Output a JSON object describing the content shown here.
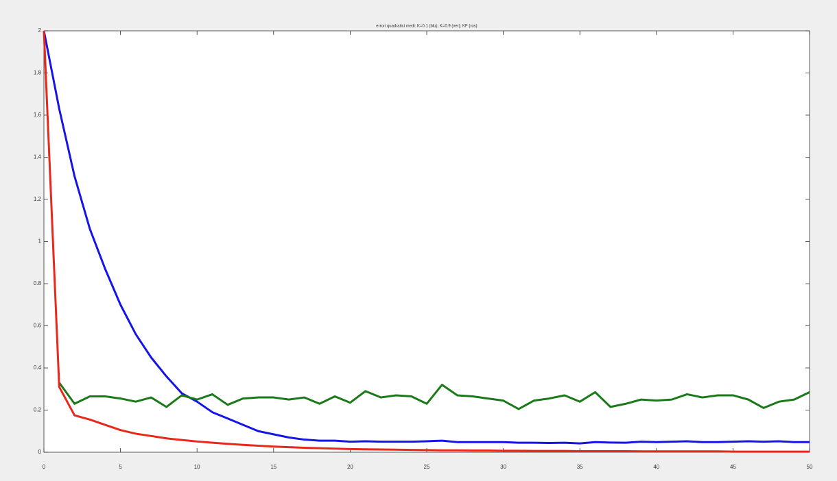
{
  "chart_data": {
    "type": "line",
    "title": "errori quadratici medi: K=0.1 (blu); K=0.9 (ver); KF (ros)",
    "x": [
      0,
      1,
      2,
      3,
      4,
      5,
      6,
      7,
      8,
      9,
      10,
      11,
      12,
      13,
      14,
      15,
      16,
      17,
      18,
      19,
      20,
      21,
      22,
      23,
      24,
      25,
      26,
      27,
      28,
      29,
      30,
      31,
      32,
      33,
      34,
      35,
      36,
      37,
      38,
      39,
      40,
      41,
      42,
      43,
      44,
      45,
      46,
      47,
      48,
      49,
      50
    ],
    "series": [
      {
        "color": "#1515e8",
        "values": [
          2,
          1.63,
          1.31,
          1.06,
          0.87,
          0.7,
          0.56,
          0.45,
          0.36,
          0.28,
          0.24,
          0.19,
          0.16,
          0.13,
          0.1,
          0.085,
          0.07,
          0.06,
          0.055,
          0.055,
          0.05,
          0.052,
          0.05,
          0.05,
          0.05,
          0.052,
          0.055,
          0.048,
          0.048,
          0.048,
          0.048,
          0.045,
          0.045,
          0.044,
          0.045,
          0.042,
          0.048,
          0.046,
          0.045,
          0.05,
          0.048,
          0.05,
          0.052,
          0.048,
          0.048,
          0.05,
          0.052,
          0.05,
          0.052,
          0.048,
          0.048
        ]
      },
      {
        "color": "#1a7a1a",
        "values": [
          null,
          0.33,
          0.23,
          0.265,
          0.265,
          0.255,
          0.24,
          0.26,
          0.215,
          0.27,
          0.25,
          0.275,
          0.225,
          0.255,
          0.26,
          0.26,
          0.25,
          0.26,
          0.23,
          0.265,
          0.235,
          0.29,
          0.26,
          0.27,
          0.265,
          0.23,
          0.32,
          0.27,
          0.265,
          0.255,
          0.245,
          0.205,
          0.245,
          0.255,
          0.27,
          0.24,
          0.285,
          0.215,
          0.23,
          0.25,
          0.245,
          0.25,
          0.275,
          0.26,
          0.27,
          0.27,
          0.25,
          0.21,
          0.24,
          0.25,
          0.285
        ]
      },
      {
        "color": "#e8281a",
        "values": [
          2,
          0.31,
          0.175,
          0.155,
          0.13,
          0.105,
          0.088,
          0.077,
          0.066,
          0.058,
          0.051,
          0.045,
          0.04,
          0.035,
          0.031,
          0.027,
          0.024,
          0.021,
          0.019,
          0.017,
          0.015,
          0.014,
          0.013,
          0.012,
          0.011,
          0.01,
          0.009,
          0.009,
          0.008,
          0.008,
          0.007,
          0.007,
          0.006,
          0.006,
          0.006,
          0.005,
          0.005,
          0.005,
          0.005,
          0.004,
          0.004,
          0.004,
          0.004,
          0.004,
          0.004,
          0.003,
          0.003,
          0.003,
          0.003,
          0.003,
          0.003
        ]
      }
    ],
    "xlim": [
      0,
      50
    ],
    "xticks": [
      0,
      5,
      10,
      15,
      20,
      25,
      30,
      35,
      40,
      45,
      50
    ],
    "ylim": [
      0,
      2
    ],
    "yticks": [
      0,
      0.2,
      0.4,
      0.6,
      0.8,
      1,
      1.2,
      1.4,
      1.6,
      1.8,
      2
    ],
    "grid": false
  }
}
